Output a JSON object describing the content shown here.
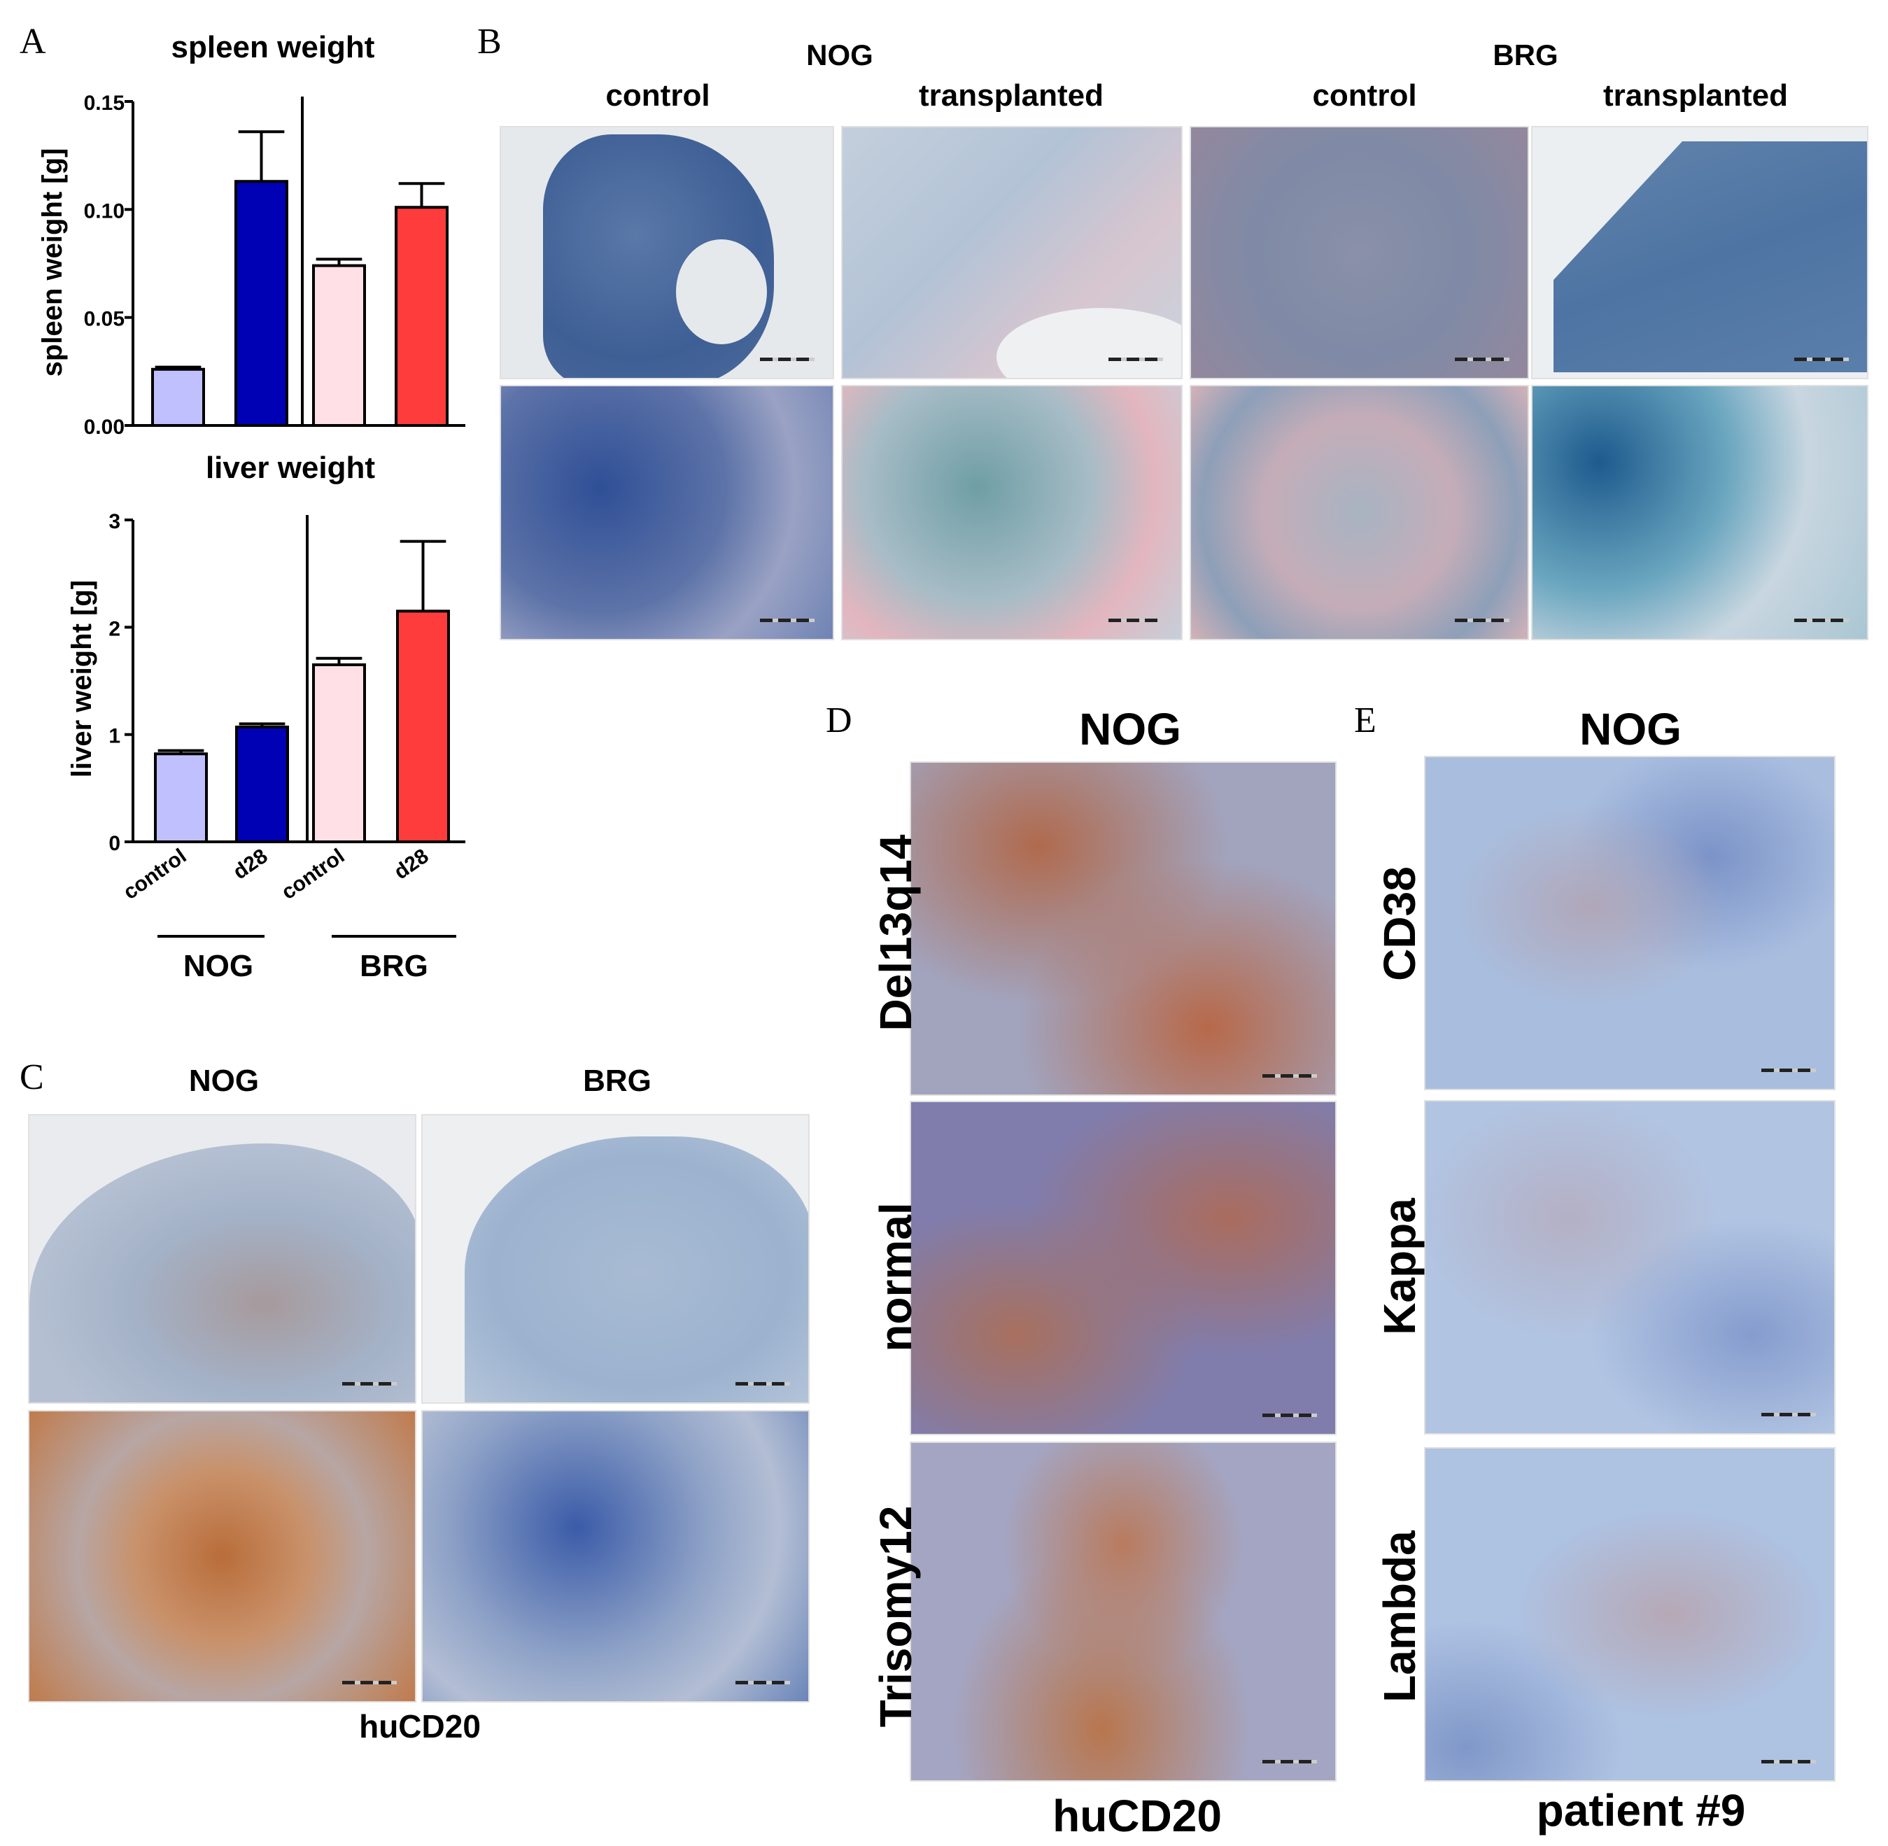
{
  "panels": {
    "A": {
      "label": "A",
      "top_title": "spleen weight",
      "bottom_title": "liver weight",
      "groups": [
        "NOG",
        "BRG"
      ]
    },
    "B": {
      "label": "B",
      "groups": [
        "NOG",
        "BRG"
      ],
      "columns": [
        "control",
        "transplanted",
        "control",
        "transplanted"
      ]
    },
    "C": {
      "label": "C",
      "columns": [
        "NOG",
        "BRG"
      ],
      "caption": "huCD20"
    },
    "D": {
      "label": "D",
      "title": "NOG",
      "rows": [
        "Del13q14",
        "normal",
        "Trisomy12"
      ],
      "caption": "huCD20"
    },
    "E": {
      "label": "E",
      "title": "NOG",
      "rows": [
        "CD38",
        "Kappa",
        "Lambda"
      ],
      "caption": "patient #9"
    }
  },
  "chart_data": [
    {
      "type": "bar",
      "title": "spleen weight",
      "ylabel": "spleen weight [g]",
      "categories": [
        "control",
        "d28",
        "control",
        "d28"
      ],
      "groups": [
        "NOG",
        "NOG",
        "BRG",
        "BRG"
      ],
      "values": [
        0.026,
        0.113,
        0.074,
        0.101
      ],
      "errors": [
        0.001,
        0.023,
        0.003,
        0.011
      ],
      "colors": [
        "#c0c0ff",
        "#0000b4",
        "#ffe0e6",
        "#ff3c3c"
      ],
      "ylim": [
        0,
        0.15
      ],
      "yticks": [
        "0.00",
        "0.05",
        "0.10",
        "0.15"
      ]
    },
    {
      "type": "bar",
      "title": "liver weight",
      "ylabel": "liver weight [g]",
      "categories": [
        "control",
        "d28",
        "control",
        "d28"
      ],
      "groups": [
        "NOG",
        "NOG",
        "BRG",
        "BRG"
      ],
      "values": [
        0.82,
        1.07,
        1.65,
        2.15
      ],
      "errors": [
        0.03,
        0.03,
        0.06,
        0.65
      ],
      "colors": [
        "#c0c0ff",
        "#0000b4",
        "#ffe0e6",
        "#ff3c3c"
      ],
      "ylim": [
        0,
        3
      ],
      "yticks": [
        "0",
        "1",
        "2",
        "3"
      ]
    }
  ]
}
